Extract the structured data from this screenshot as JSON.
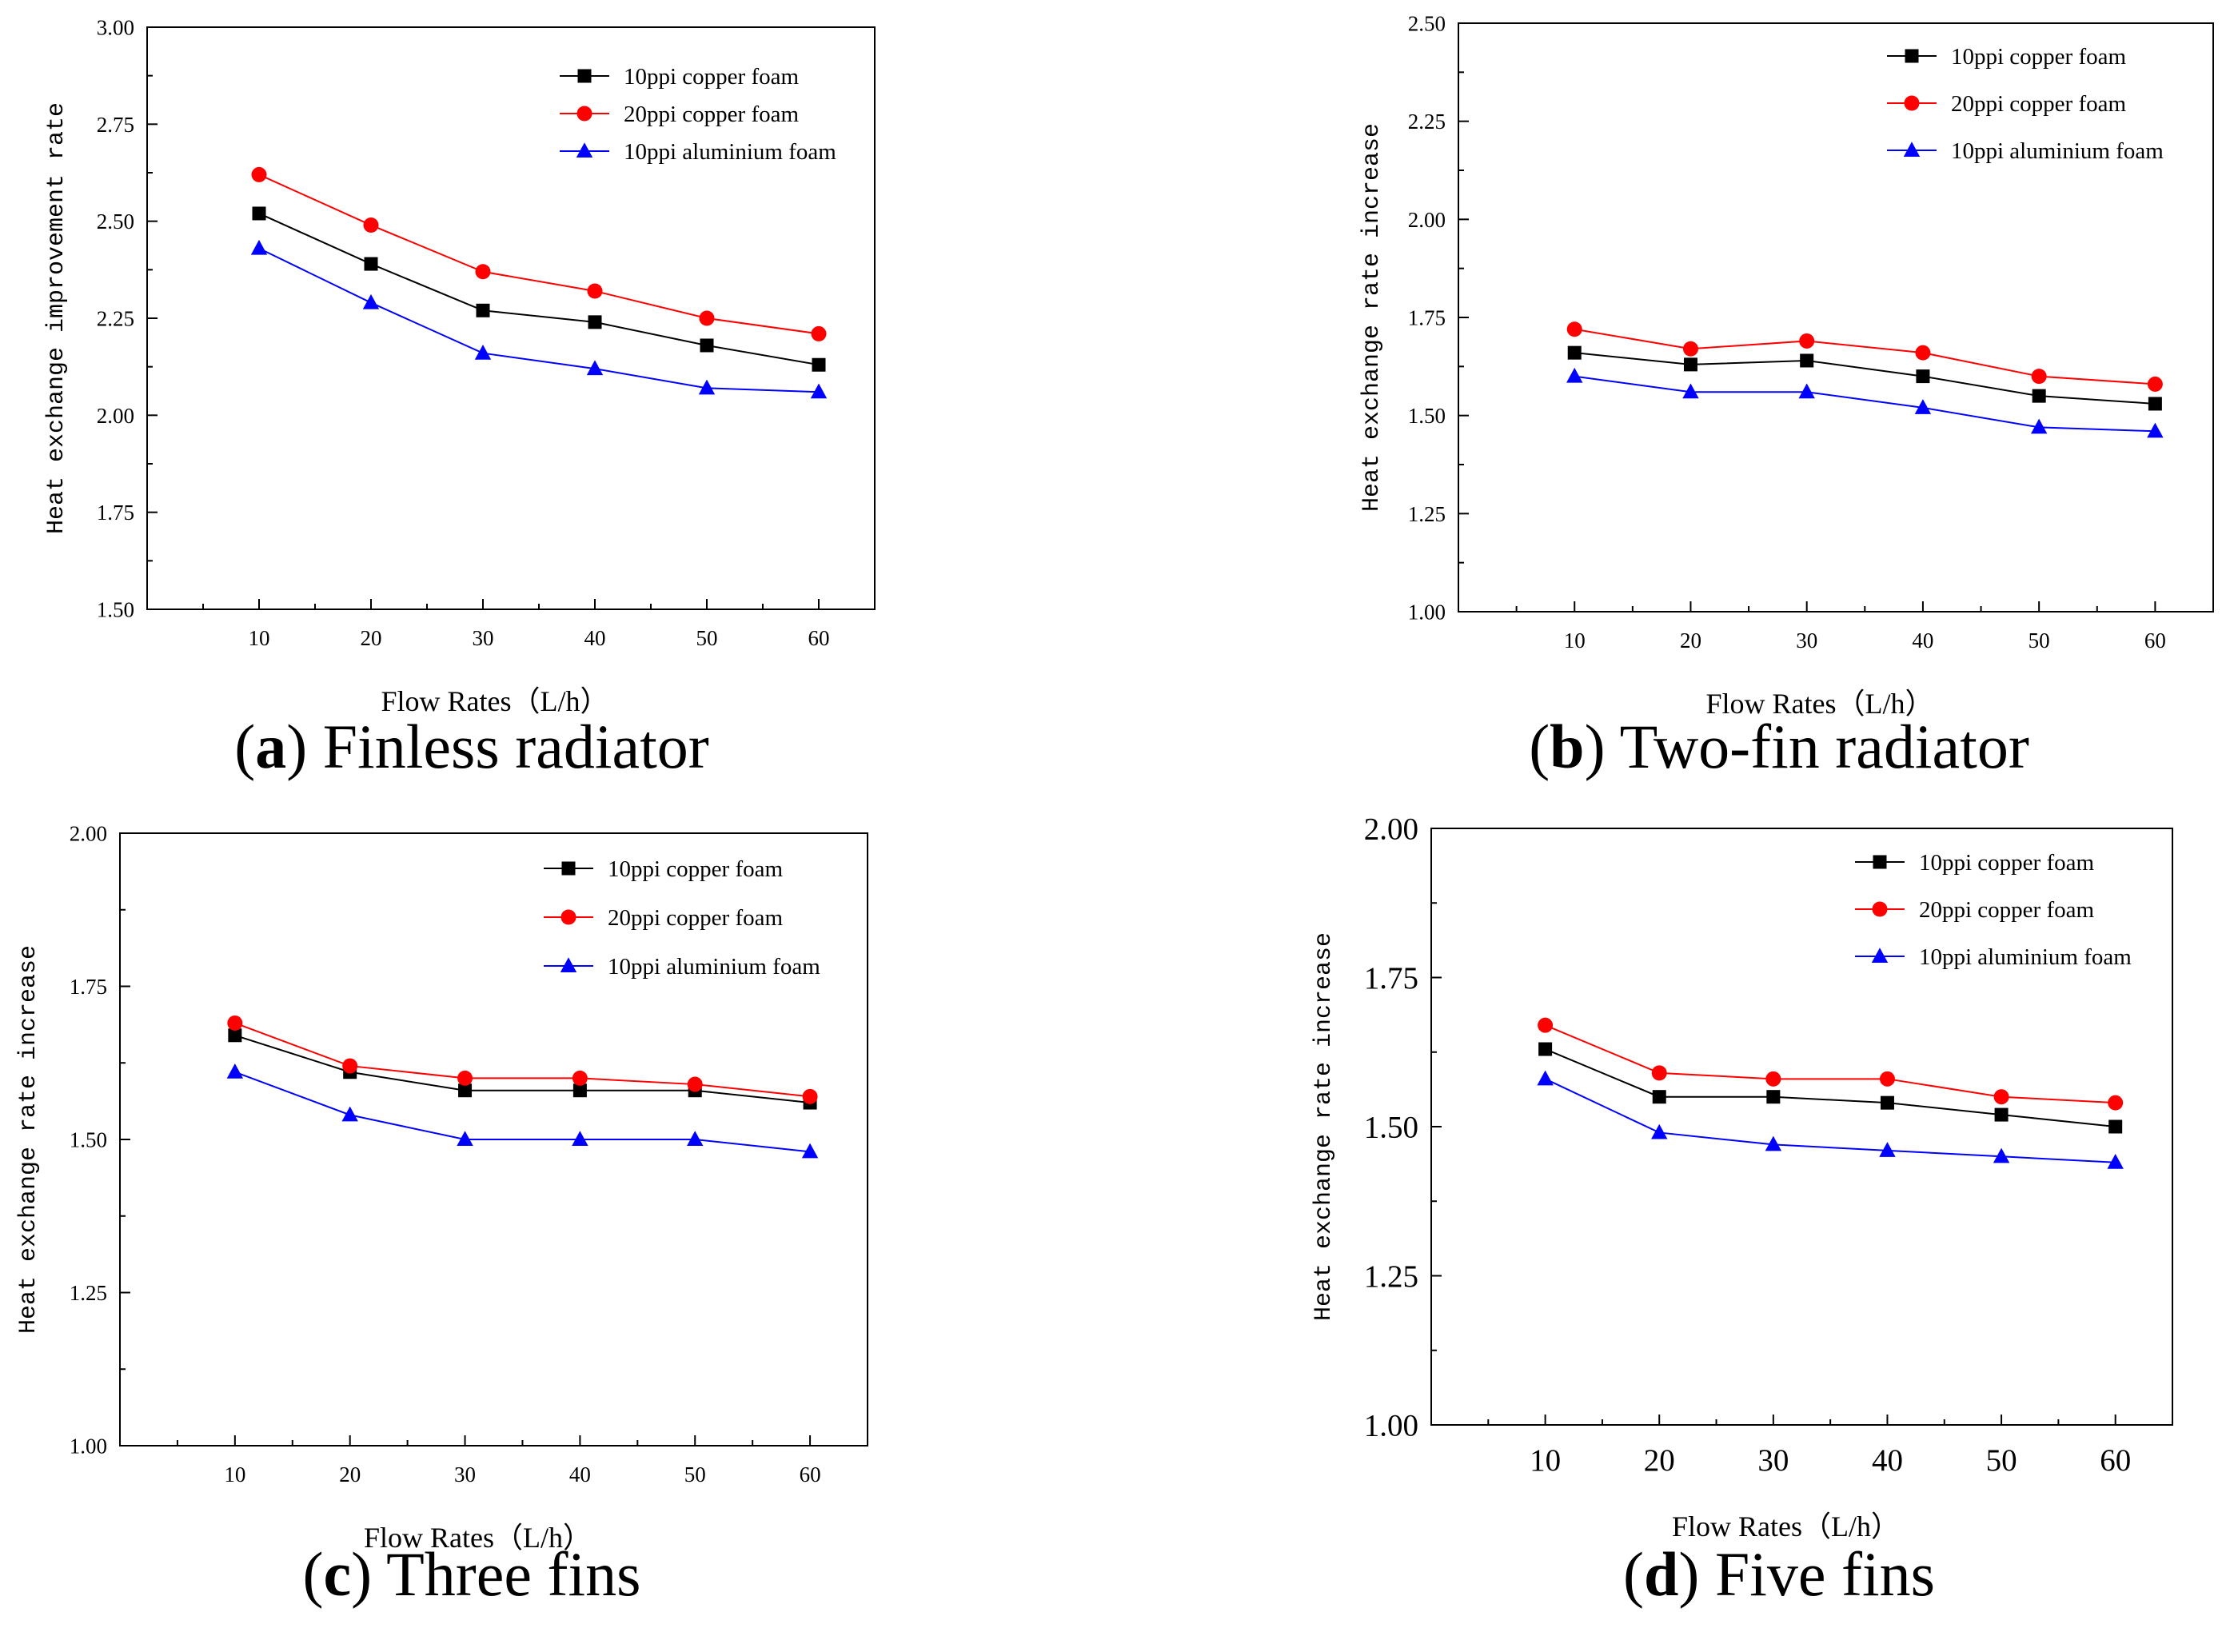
{
  "chart_data": [
    {
      "type": "line",
      "panel_letter": "a",
      "caption_text": "Finless radiator",
      "xlabel": "Flow Rates（L/h）",
      "ylabel": "Heat exchange improvement rate",
      "x": [
        10,
        20,
        30,
        40,
        50,
        60
      ],
      "xlim": [
        0,
        65
      ],
      "ylim": [
        1.5,
        3.0
      ],
      "yticks": [
        1.5,
        1.75,
        2.0,
        2.25,
        2.5,
        2.75,
        3.0
      ],
      "ytick_labels": [
        "1.50",
        "1.75",
        "2.00",
        "2.25",
        "2.50",
        "2.75",
        "3.00"
      ],
      "legend_position": "top-right",
      "series": [
        {
          "name": "10ppi copper foam",
          "color": "#000000",
          "marker": "square",
          "values": [
            2.52,
            2.39,
            2.27,
            2.24,
            2.18,
            2.13
          ]
        },
        {
          "name": "20ppi copper foam",
          "color": "#ff0000",
          "marker": "circle",
          "values": [
            2.62,
            2.49,
            2.37,
            2.32,
            2.25,
            2.21
          ]
        },
        {
          "name": "10ppi aluminium foam",
          "color": "#0000ff",
          "marker": "triangle",
          "values": [
            2.43,
            2.29,
            2.16,
            2.12,
            2.07,
            2.06
          ]
        }
      ]
    },
    {
      "type": "line",
      "panel_letter": "b",
      "caption_text": "Two-fin radiator",
      "xlabel": "Flow Rates（L/h）",
      "ylabel": "Heat exchange rate increase",
      "x": [
        10,
        20,
        30,
        40,
        50,
        60
      ],
      "xlim": [
        0,
        65
      ],
      "ylim": [
        1.0,
        2.5
      ],
      "yticks": [
        1.0,
        1.25,
        1.5,
        1.75,
        2.0,
        2.25,
        2.5
      ],
      "ytick_labels": [
        "1.00",
        "1.25",
        "1.50",
        "1.75",
        "2.00",
        "2.25",
        "2.50"
      ],
      "legend_position": "top-right",
      "series": [
        {
          "name": "10ppi copper foam",
          "color": "#000000",
          "marker": "square",
          "values": [
            1.66,
            1.63,
            1.64,
            1.6,
            1.55,
            1.53
          ]
        },
        {
          "name": "20ppi copper foam",
          "color": "#ff0000",
          "marker": "circle",
          "values": [
            1.72,
            1.67,
            1.69,
            1.66,
            1.6,
            1.58
          ]
        },
        {
          "name": "10ppi aluminium foam",
          "color": "#0000ff",
          "marker": "triangle",
          "values": [
            1.6,
            1.56,
            1.56,
            1.52,
            1.47,
            1.46
          ]
        }
      ]
    },
    {
      "type": "line",
      "panel_letter": "c",
      "caption_text": "Three fins",
      "xlabel": "Flow Rates（L/h）",
      "ylabel": "Heat exchange rate increase",
      "x": [
        10,
        20,
        30,
        40,
        50,
        60
      ],
      "xlim": [
        0,
        65
      ],
      "ylim": [
        1.0,
        2.0
      ],
      "yticks": [
        1.0,
        1.25,
        1.5,
        1.75,
        2.0
      ],
      "ytick_labels": [
        "1.00",
        "1.25",
        "1.50",
        "1.75",
        "2.00"
      ],
      "legend_position": "top-right",
      "series": [
        {
          "name": "10ppi copper foam",
          "color": "#000000",
          "marker": "square",
          "values": [
            1.67,
            1.61,
            1.58,
            1.58,
            1.58,
            1.56
          ]
        },
        {
          "name": "20ppi copper foam",
          "color": "#ff0000",
          "marker": "circle",
          "values": [
            1.69,
            1.62,
            1.6,
            1.6,
            1.59,
            1.57
          ]
        },
        {
          "name": "10ppi aluminium foam",
          "color": "#0000ff",
          "marker": "triangle",
          "values": [
            1.61,
            1.54,
            1.5,
            1.5,
            1.5,
            1.48
          ]
        }
      ]
    },
    {
      "type": "line",
      "panel_letter": "d",
      "caption_text": "Five fins",
      "xlabel": "Flow Rates（L/h）",
      "ylabel": "Heat exchange rate increase",
      "x": [
        10,
        20,
        30,
        40,
        50,
        60
      ],
      "xlim": [
        0,
        65
      ],
      "ylim": [
        1.0,
        2.0
      ],
      "yticks": [
        1.0,
        1.25,
        1.5,
        1.75,
        2.0
      ],
      "ytick_labels": [
        "1.00",
        "1.25",
        "1.50",
        "1.75",
        "2.00"
      ],
      "legend_position": "top-right",
      "series": [
        {
          "name": "10ppi copper foam",
          "color": "#000000",
          "marker": "square",
          "values": [
            1.63,
            1.55,
            1.55,
            1.54,
            1.52,
            1.5
          ]
        },
        {
          "name": "20ppi copper foam",
          "color": "#ff0000",
          "marker": "circle",
          "values": [
            1.67,
            1.59,
            1.58,
            1.58,
            1.55,
            1.54
          ]
        },
        {
          "name": "10ppi aluminium foam",
          "color": "#0000ff",
          "marker": "triangle",
          "values": [
            1.58,
            1.49,
            1.47,
            1.46,
            1.45,
            1.44
          ]
        }
      ]
    }
  ]
}
